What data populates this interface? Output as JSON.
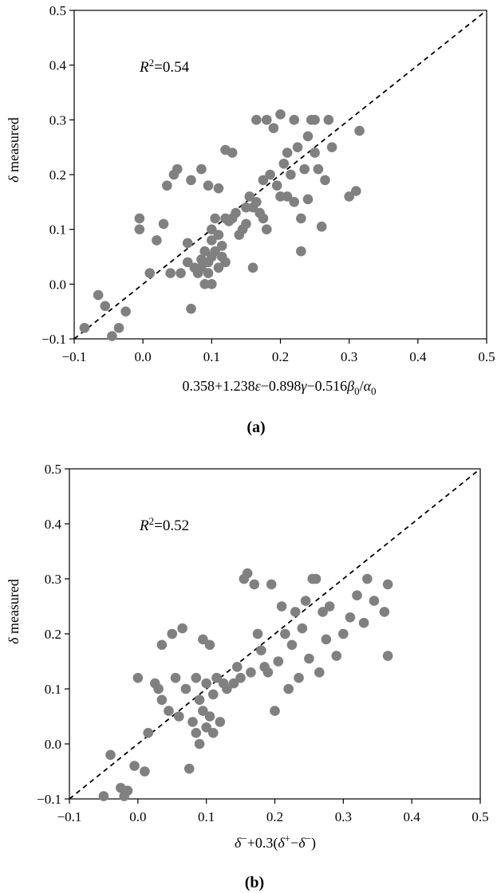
{
  "chart_data": [
    {
      "type": "scatter",
      "panel_label": "(a)",
      "annotation": "R²=0.54",
      "annotation_base": "R",
      "annotation_sup": "2",
      "annotation_rest": "=0.54",
      "xlabel": "0.358+1.238ε−0.898γ−0.516β₀/α₀",
      "ylabel": "δ measured",
      "xlim": [
        -0.1,
        0.5
      ],
      "ylim": [
        -0.1,
        0.5
      ],
      "xticks": [
        "−0.1",
        "0.0",
        "0.1",
        "0.2",
        "0.3",
        "0.4",
        "0.5"
      ],
      "yticks": [
        "−0.1",
        "0.0",
        "0.1",
        "0.2",
        "0.3",
        "0.4",
        "0.5"
      ],
      "reference_line": "y = x (dashed)",
      "marker_color": "#808080",
      "points": [
        [
          -0.085,
          -0.08
        ],
        [
          -0.065,
          -0.02
        ],
        [
          -0.055,
          -0.04
        ],
        [
          -0.045,
          -0.095
        ],
        [
          -0.035,
          -0.08
        ],
        [
          -0.025,
          -0.05
        ],
        [
          -0.005,
          0.12
        ],
        [
          -0.005,
          0.1
        ],
        [
          0.01,
          0.02
        ],
        [
          0.02,
          0.08
        ],
        [
          0.03,
          0.11
        ],
        [
          0.035,
          0.18
        ],
        [
          0.04,
          0.02
        ],
        [
          0.045,
          0.2
        ],
        [
          0.05,
          0.21
        ],
        [
          0.055,
          0.02
        ],
        [
          0.065,
          0.075
        ],
        [
          0.065,
          0.04
        ],
        [
          0.07,
          0.19
        ],
        [
          0.07,
          -0.045
        ],
        [
          0.075,
          0.03
        ],
        [
          0.08,
          0.02
        ],
        [
          0.085,
          0.21
        ],
        [
          0.085,
          0.045
        ],
        [
          0.085,
          0.03
        ],
        [
          0.09,
          0.06
        ],
        [
          0.09,
          0.0
        ],
        [
          0.095,
          0.18
        ],
        [
          0.095,
          0.04
        ],
        [
          0.095,
          0.02
        ],
        [
          0.1,
          0.1
        ],
        [
          0.1,
          0.08
        ],
        [
          0.1,
          0.05
        ],
        [
          0.1,
          0.0
        ],
        [
          0.105,
          0.12
        ],
        [
          0.105,
          0.06
        ],
        [
          0.11,
          0.175
        ],
        [
          0.11,
          0.09
        ],
        [
          0.11,
          0.03
        ],
        [
          0.115,
          0.07
        ],
        [
          0.115,
          0.05
        ],
        [
          0.12,
          0.245
        ],
        [
          0.12,
          0.12
        ],
        [
          0.12,
          0.04
        ],
        [
          0.125,
          0.115
        ],
        [
          0.13,
          0.24
        ],
        [
          0.13,
          0.12
        ],
        [
          0.135,
          0.13
        ],
        [
          0.14,
          0.09
        ],
        [
          0.145,
          0.1
        ],
        [
          0.15,
          0.11
        ],
        [
          0.15,
          0.14
        ],
        [
          0.155,
          0.16
        ],
        [
          0.16,
          0.03
        ],
        [
          0.16,
          0.14
        ],
        [
          0.165,
          0.3
        ],
        [
          0.165,
          0.15
        ],
        [
          0.17,
          0.13
        ],
        [
          0.175,
          0.12
        ],
        [
          0.175,
          0.19
        ],
        [
          0.18,
          0.1
        ],
        [
          0.18,
          0.3
        ],
        [
          0.185,
          0.2
        ],
        [
          0.19,
          0.285
        ],
        [
          0.195,
          0.18
        ],
        [
          0.2,
          0.31
        ],
        [
          0.2,
          0.16
        ],
        [
          0.205,
          0.22
        ],
        [
          0.21,
          0.16
        ],
        [
          0.21,
          0.24
        ],
        [
          0.215,
          0.2
        ],
        [
          0.22,
          0.3
        ],
        [
          0.22,
          0.15
        ],
        [
          0.225,
          0.25
        ],
        [
          0.23,
          0.12
        ],
        [
          0.23,
          0.06
        ],
        [
          0.235,
          0.21
        ],
        [
          0.24,
          0.27
        ],
        [
          0.24,
          0.155
        ],
        [
          0.245,
          0.3
        ],
        [
          0.25,
          0.3
        ],
        [
          0.25,
          0.24
        ],
        [
          0.255,
          0.21
        ],
        [
          0.26,
          0.105
        ],
        [
          0.265,
          0.19
        ],
        [
          0.27,
          0.3
        ],
        [
          0.275,
          0.25
        ],
        [
          0.3,
          0.16
        ],
        [
          0.31,
          0.17
        ],
        [
          0.315,
          0.28
        ]
      ]
    },
    {
      "type": "scatter",
      "panel_label": "(b)",
      "annotation": "R²=0.52",
      "annotation_base": "R",
      "annotation_sup": "2",
      "annotation_rest": "=0.52",
      "xlabel": "δ⁻+0.3(δ⁺−δ⁻)",
      "ylabel": "δ measured",
      "xlim": [
        -0.1,
        0.5
      ],
      "ylim": [
        -0.1,
        0.5
      ],
      "xticks": [
        "−0.1",
        "0.0",
        "0.1",
        "0.2",
        "0.3",
        "0.4",
        "0.5"
      ],
      "yticks": [
        "−0.1",
        "0.0",
        "0.1",
        "0.2",
        "0.3",
        "0.4",
        "0.5"
      ],
      "reference_line": "y = x (dashed)",
      "marker_color": "#808080",
      "points": [
        [
          -0.05,
          -0.095
        ],
        [
          -0.04,
          -0.02
        ],
        [
          -0.025,
          -0.08
        ],
        [
          -0.02,
          -0.095
        ],
        [
          -0.015,
          -0.085
        ],
        [
          -0.005,
          -0.04
        ],
        [
          0.0,
          0.12
        ],
        [
          0.01,
          -0.05
        ],
        [
          0.015,
          0.02
        ],
        [
          0.025,
          0.11
        ],
        [
          0.03,
          0.1
        ],
        [
          0.035,
          0.18
        ],
        [
          0.035,
          0.08
        ],
        [
          0.045,
          0.06
        ],
        [
          0.05,
          0.2
        ],
        [
          0.055,
          0.12
        ],
        [
          0.06,
          0.05
        ],
        [
          0.065,
          0.21
        ],
        [
          0.07,
          0.1
        ],
        [
          0.075,
          -0.045
        ],
        [
          0.08,
          0.04
        ],
        [
          0.085,
          0.12
        ],
        [
          0.085,
          0.02
        ],
        [
          0.09,
          0.08
        ],
        [
          0.09,
          0.0
        ],
        [
          0.095,
          0.19
        ],
        [
          0.095,
          0.06
        ],
        [
          0.1,
          0.11
        ],
        [
          0.1,
          0.03
        ],
        [
          0.105,
          0.18
        ],
        [
          0.105,
          0.05
        ],
        [
          0.11,
          0.09
        ],
        [
          0.11,
          0.02
        ],
        [
          0.115,
          0.12
        ],
        [
          0.12,
          0.04
        ],
        [
          0.125,
          0.11
        ],
        [
          0.13,
          0.1
        ],
        [
          0.14,
          0.11
        ],
        [
          0.145,
          0.14
        ],
        [
          0.15,
          0.12
        ],
        [
          0.155,
          0.3
        ],
        [
          0.16,
          0.31
        ],
        [
          0.165,
          0.13
        ],
        [
          0.17,
          0.29
        ],
        [
          0.175,
          0.2
        ],
        [
          0.18,
          0.17
        ],
        [
          0.185,
          0.14
        ],
        [
          0.19,
          0.13
        ],
        [
          0.195,
          0.29
        ],
        [
          0.2,
          0.06
        ],
        [
          0.205,
          0.15
        ],
        [
          0.21,
          0.25
        ],
        [
          0.215,
          0.2
        ],
        [
          0.22,
          0.1
        ],
        [
          0.225,
          0.18
        ],
        [
          0.23,
          0.24
        ],
        [
          0.235,
          0.12
        ],
        [
          0.24,
          0.21
        ],
        [
          0.245,
          0.26
        ],
        [
          0.25,
          0.155
        ],
        [
          0.255,
          0.3
        ],
        [
          0.26,
          0.3
        ],
        [
          0.265,
          0.13
        ],
        [
          0.27,
          0.24
        ],
        [
          0.275,
          0.19
        ],
        [
          0.28,
          0.25
        ],
        [
          0.29,
          0.16
        ],
        [
          0.3,
          0.2
        ],
        [
          0.31,
          0.23
        ],
        [
          0.32,
          0.27
        ],
        [
          0.33,
          0.22
        ],
        [
          0.335,
          0.3
        ],
        [
          0.345,
          0.26
        ],
        [
          0.36,
          0.24
        ],
        [
          0.365,
          0.29
        ],
        [
          0.365,
          0.16
        ]
      ]
    }
  ]
}
